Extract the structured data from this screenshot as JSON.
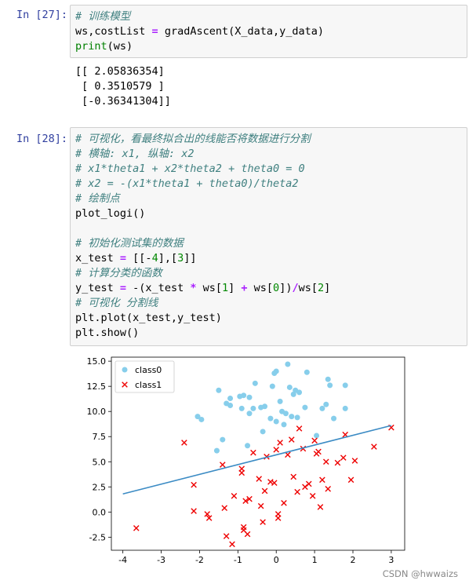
{
  "cell27": {
    "prompt": "In  [27]:",
    "lines": [
      {
        "type": "comment",
        "text": "# 训练模型"
      },
      {
        "type": "code",
        "text": "ws,costList = gradAscent(X_data,y_data)"
      },
      {
        "type": "code",
        "text": "print(ws)"
      }
    ],
    "output": [
      "[[ 2.05836354]",
      " [ 0.3510579 ]",
      " [-0.36341304]]"
    ]
  },
  "cell28": {
    "prompt": "In  [28]:",
    "lines": [
      {
        "type": "comment",
        "text": "# 可视化，看最终拟合出的线能否将数据进行分割"
      },
      {
        "type": "comment",
        "text": "# 横轴: x1, 纵轴: x2"
      },
      {
        "type": "comment",
        "text": "# x1*theta1 + x2*theta2 + theta0 = 0"
      },
      {
        "type": "comment",
        "text": "# x2 = -(x1*theta1 + theta0)/theta2"
      },
      {
        "type": "comment",
        "text": "# 绘制点"
      },
      {
        "type": "code",
        "text": "plot_logi()"
      },
      {
        "type": "blank",
        "text": ""
      },
      {
        "type": "comment",
        "text": "# 初始化测试集的数据"
      },
      {
        "type": "code",
        "text": "x_test = [[-4],[3]]"
      },
      {
        "type": "comment",
        "text": "# 计算分类的函数"
      },
      {
        "type": "code",
        "text": "y_test = -(x_test * ws[1] + ws[0])/ws[2]"
      },
      {
        "type": "comment",
        "text": "# 可视化 分割线"
      },
      {
        "type": "code",
        "text": "plt.plot(x_test,y_test)"
      },
      {
        "type": "code",
        "text": "plt.show()"
      }
    ]
  },
  "chart_data": {
    "type": "scatter",
    "title": "",
    "xlabel": "",
    "ylabel": "",
    "xlim": [
      -4.3,
      3.35
    ],
    "ylim": [
      -3.8,
      15.4
    ],
    "xticks": [
      "-4",
      "-3",
      "-2",
      "-1",
      "0",
      "1",
      "2",
      "3"
    ],
    "yticks": [
      "-2.5",
      "0.0",
      "2.5",
      "5.0",
      "7.5",
      "10.0",
      "12.5",
      "15.0"
    ],
    "xtick_values": [
      -4,
      -3,
      -2,
      -1,
      0,
      1,
      2,
      3
    ],
    "ytick_values": [
      -2.5,
      0,
      2.5,
      5,
      7.5,
      10,
      12.5,
      15
    ],
    "legend_position": "top-left",
    "series": [
      {
        "name": "class0",
        "marker": "circle",
        "color": "#87ceeb",
        "points": [
          [
            -2.05,
            9.5
          ],
          [
            -1.95,
            9.2
          ],
          [
            -1.5,
            12.1
          ],
          [
            -1.4,
            7.2
          ],
          [
            -1.3,
            10.8
          ],
          [
            -1.2,
            11.3
          ],
          [
            -1.2,
            10.6
          ],
          [
            -0.95,
            11.5
          ],
          [
            -0.9,
            10.3
          ],
          [
            -0.85,
            11.6
          ],
          [
            -0.75,
            6.6
          ],
          [
            -0.7,
            11.4
          ],
          [
            -0.7,
            9.8
          ],
          [
            -0.6,
            10.3
          ],
          [
            -0.55,
            12.8
          ],
          [
            -0.4,
            10.4
          ],
          [
            -0.35,
            8.0
          ],
          [
            -0.3,
            10.5
          ],
          [
            -0.15,
            9.3
          ],
          [
            -0.1,
            12.5
          ],
          [
            -0.05,
            13.8
          ],
          [
            0.0,
            14.0
          ],
          [
            0.0,
            9.0
          ],
          [
            0.1,
            11.0
          ],
          [
            0.15,
            10.0
          ],
          [
            0.2,
            8.7
          ],
          [
            0.25,
            9.8
          ],
          [
            0.3,
            14.7
          ],
          [
            0.35,
            12.4
          ],
          [
            0.4,
            9.5
          ],
          [
            0.45,
            11.7
          ],
          [
            0.5,
            12.1
          ],
          [
            0.55,
            9.4
          ],
          [
            0.6,
            11.9
          ],
          [
            0.75,
            10.4
          ],
          [
            0.8,
            13.9
          ],
          [
            1.05,
            7.6
          ],
          [
            1.2,
            10.3
          ],
          [
            1.3,
            10.7
          ],
          [
            1.35,
            13.2
          ],
          [
            1.4,
            12.6
          ],
          [
            1.5,
            9.3
          ],
          [
            1.8,
            10.3
          ],
          [
            1.8,
            12.6
          ],
          [
            -1.55,
            6.1
          ]
        ]
      },
      {
        "name": "class1",
        "marker": "x",
        "color": "#ee0000",
        "points": [
          [
            -3.65,
            -1.6
          ],
          [
            -2.4,
            6.9
          ],
          [
            -2.15,
            2.7
          ],
          [
            -2.15,
            0.1
          ],
          [
            -1.8,
            -0.2
          ],
          [
            -1.75,
            -0.6
          ],
          [
            -1.4,
            4.7
          ],
          [
            -1.35,
            0.4
          ],
          [
            -1.3,
            -2.4
          ],
          [
            -1.15,
            -3.2
          ],
          [
            -1.1,
            1.6
          ],
          [
            -0.9,
            4.3
          ],
          [
            -0.9,
            3.9
          ],
          [
            -0.85,
            -1.5
          ],
          [
            -0.85,
            -1.8
          ],
          [
            -0.8,
            1.1
          ],
          [
            -0.75,
            -2.2
          ],
          [
            -0.7,
            1.3
          ],
          [
            -0.6,
            5.9
          ],
          [
            -0.45,
            3.3
          ],
          [
            -0.4,
            0.6
          ],
          [
            -0.35,
            -1.0
          ],
          [
            -0.3,
            2.1
          ],
          [
            -0.25,
            5.5
          ],
          [
            -0.15,
            3.0
          ],
          [
            -0.05,
            2.9
          ],
          [
            0.0,
            6.2
          ],
          [
            0.05,
            -0.6
          ],
          [
            0.05,
            -0.2
          ],
          [
            0.1,
            6.9
          ],
          [
            0.2,
            0.9
          ],
          [
            0.3,
            5.7
          ],
          [
            0.4,
            7.2
          ],
          [
            0.45,
            3.5
          ],
          [
            0.55,
            2.0
          ],
          [
            0.6,
            8.3
          ],
          [
            0.7,
            6.3
          ],
          [
            0.75,
            2.5
          ],
          [
            0.85,
            2.8
          ],
          [
            0.95,
            1.6
          ],
          [
            1.0,
            7.1
          ],
          [
            1.05,
            5.8
          ],
          [
            1.1,
            6.0
          ],
          [
            1.15,
            0.5
          ],
          [
            1.2,
            3.2
          ],
          [
            1.3,
            5.0
          ],
          [
            1.35,
            2.3
          ],
          [
            1.6,
            4.9
          ],
          [
            1.75,
            5.4
          ],
          [
            1.8,
            7.7
          ],
          [
            1.95,
            3.2
          ],
          [
            2.05,
            5.1
          ],
          [
            2.55,
            6.5
          ],
          [
            3.0,
            8.4
          ]
        ]
      },
      {
        "name": "",
        "marker": "line",
        "color": "#3b8bc4",
        "points": [
          [
            -4,
            1.8
          ],
          [
            3,
            8.6
          ]
        ]
      }
    ]
  },
  "watermark": "CSDN @hwwaizs"
}
